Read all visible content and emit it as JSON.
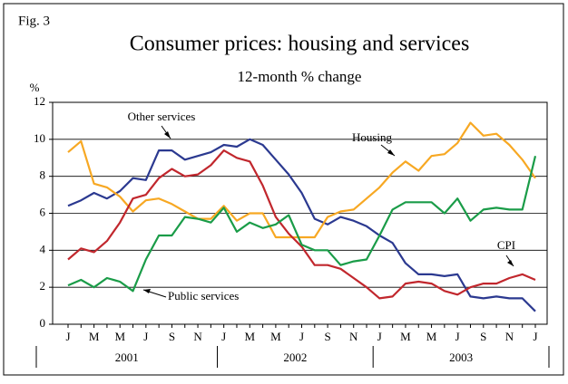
{
  "chart_data": {
    "type": "line",
    "figure_label": "Fig. 3",
    "title": "Consumer prices: housing and services",
    "subtitle": "12-month % change",
    "y_label": "%",
    "categories": [
      "J",
      null,
      "M",
      null,
      "M",
      null,
      "J",
      null,
      "S",
      null,
      "N",
      null,
      "J",
      null,
      "M",
      null,
      "M",
      null,
      "J",
      null,
      "S",
      null,
      "N",
      null,
      "J",
      null,
      "M",
      null,
      "M",
      null,
      "J",
      null,
      "S",
      null,
      "N",
      null,
      "J"
    ],
    "year_labels": [
      "2001",
      "2002",
      "2003"
    ],
    "ylim": [
      0,
      12
    ],
    "yticks": [
      0,
      2,
      4,
      6,
      8,
      10,
      12
    ],
    "grid": true,
    "series": [
      {
        "name": "Other services",
        "color": "#2b3990",
        "values": [
          6.4,
          6.7,
          7.1,
          6.8,
          7.2,
          7.9,
          7.8,
          9.4,
          9.4,
          8.9,
          9.1,
          9.3,
          9.7,
          9.6,
          10.0,
          9.7,
          8.9,
          8.1,
          7.1,
          5.7,
          5.4,
          5.8,
          5.6,
          5.3,
          4.8,
          4.4,
          3.3,
          2.7,
          2.7,
          2.6,
          2.7,
          1.5,
          1.4,
          1.5,
          1.4,
          1.4,
          0.7
        ]
      },
      {
        "name": "Housing",
        "color": "#f7a823",
        "values": [
          9.3,
          9.9,
          7.6,
          7.4,
          6.9,
          6.1,
          6.7,
          6.8,
          6.5,
          6.1,
          5.7,
          5.7,
          6.4,
          5.6,
          6.0,
          6.0,
          4.7,
          4.7,
          4.7,
          4.7,
          5.8,
          6.1,
          6.2,
          6.8,
          7.4,
          8.2,
          8.8,
          8.3,
          9.1,
          9.2,
          9.8,
          10.9,
          10.2,
          10.3,
          9.7,
          8.9,
          7.9
        ]
      },
      {
        "name": "CPI",
        "color": "#c1272d",
        "values": [
          3.5,
          4.1,
          3.9,
          4.5,
          5.5,
          6.8,
          7.0,
          7.9,
          8.4,
          8.0,
          8.1,
          8.6,
          9.4,
          9.0,
          8.8,
          7.5,
          5.8,
          4.9,
          4.2,
          3.2,
          3.2,
          3.0,
          2.5,
          2.0,
          1.4,
          1.5,
          2.2,
          2.3,
          2.2,
          1.8,
          1.6,
          2.0,
          2.2,
          2.2,
          2.5,
          2.7,
          2.4
        ]
      },
      {
        "name": "Public services",
        "color": "#1a9c48",
        "values": [
          2.1,
          2.4,
          2.0,
          2.5,
          2.3,
          1.8,
          3.5,
          4.8,
          4.8,
          5.8,
          5.7,
          5.5,
          6.3,
          5.0,
          5.5,
          5.2,
          5.4,
          5.9,
          4.3,
          4.0,
          4.0,
          3.2,
          3.4,
          3.5,
          4.8,
          6.2,
          6.6,
          6.6,
          6.6,
          6.0,
          6.8,
          5.6,
          6.2,
          6.3,
          6.2,
          6.2,
          9.1
        ]
      }
    ]
  }
}
